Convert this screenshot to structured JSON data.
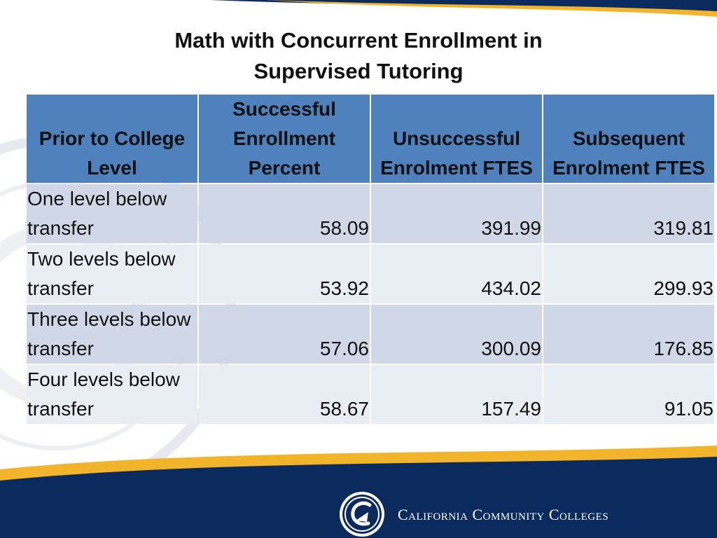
{
  "title": {
    "line1": "Math with Concurrent Enrollment in",
    "line2": "Supervised Tutoring"
  },
  "table": {
    "headers": [
      "Prior to College Level",
      "Successful Enrollment Percent",
      "Unsuccessful Enrolment FTES",
      "Subsequent Enrolment FTES"
    ],
    "rows": [
      {
        "level": "One level below transfer",
        "success_pct": "58.09",
        "unsuccessful_ftes": "391.99",
        "subsequent_ftes": "319.81"
      },
      {
        "level": "Two levels below transfer",
        "success_pct": "53.92",
        "unsuccessful_ftes": "434.02",
        "subsequent_ftes": "299.93"
      },
      {
        "level": "Three levels below transfer",
        "success_pct": "57.06",
        "unsuccessful_ftes": "300.09",
        "subsequent_ftes": "176.85"
      },
      {
        "level": "Four levels below transfer",
        "success_pct": "58.67",
        "unsuccessful_ftes": "157.49",
        "subsequent_ftes": "91.05"
      }
    ]
  },
  "footer": {
    "organization": "California Community Colleges",
    "logo_icon": "ccc-seal-icon"
  },
  "colors": {
    "navy": "#0b2a5e",
    "gold": "#f2b42a",
    "header_blue": "#4f81bd",
    "row_odd": "#d0d8e8",
    "row_even": "#e9edf4"
  }
}
